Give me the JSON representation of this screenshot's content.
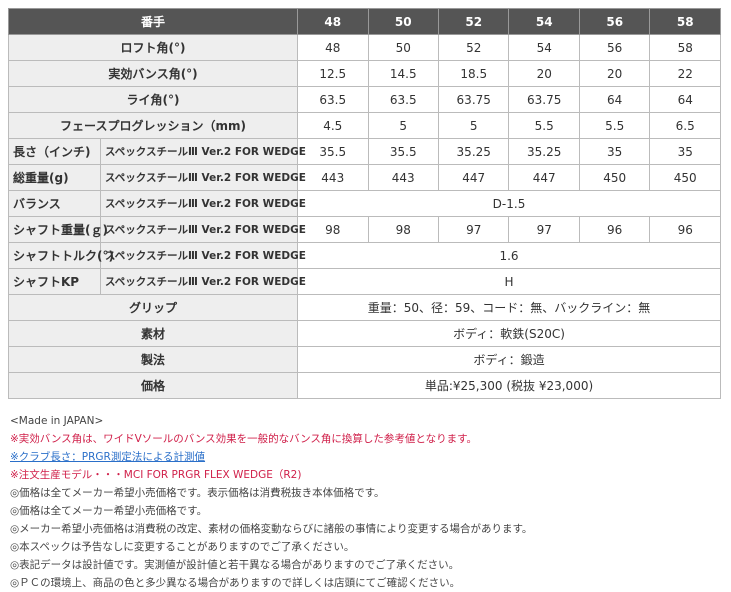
{
  "header": {
    "label": "番手",
    "models": [
      "48",
      "50",
      "52",
      "54",
      "56",
      "58"
    ]
  },
  "rows": {
    "loft": {
      "label": "ロフト角(°)",
      "values": [
        "48",
        "50",
        "52",
        "54",
        "56",
        "58"
      ]
    },
    "bounce": {
      "label": "実効バンス角(°)",
      "values": [
        "12.5",
        "14.5",
        "18.5",
        "20",
        "20",
        "22"
      ]
    },
    "lie": {
      "label": "ライ角(°)",
      "values": [
        "63.5",
        "63.5",
        "63.75",
        "63.75",
        "64",
        "64"
      ]
    },
    "fp": {
      "label": "フェースプログレッション（mm)",
      "values": [
        "4.5",
        "5",
        "5",
        "5.5",
        "5.5",
        "6.5"
      ]
    },
    "length": {
      "label": "長さ（インチ)",
      "shaft": "スペックスチールⅢ Ver.2 FOR WEDGE",
      "values": [
        "35.5",
        "35.5",
        "35.25",
        "35.25",
        "35",
        "35"
      ]
    },
    "weight": {
      "label": "総重量(g)",
      "shaft": "スペックスチールⅢ Ver.2 FOR WEDGE",
      "values": [
        "443",
        "443",
        "447",
        "447",
        "450",
        "450"
      ]
    },
    "balance": {
      "label": "バランス",
      "shaft": "スペックスチールⅢ Ver.2 FOR WEDGE",
      "value": "D-1.5"
    },
    "shaft_weight": {
      "label": "シャフト重量(ｇ)",
      "shaft": "スペックスチールⅢ Ver.2 FOR WEDGE",
      "values": [
        "98",
        "98",
        "97",
        "97",
        "96",
        "96"
      ]
    },
    "torque": {
      "label": "シャフトトルク(°)",
      "shaft": "スペックスチールⅢ Ver.2 FOR WEDGE",
      "value": "1.6"
    },
    "kp": {
      "label": "シャフトKP",
      "shaft": "スペックスチールⅢ Ver.2 FOR WEDGE",
      "value": "H"
    },
    "grip": {
      "label": "グリップ",
      "value": "重量：50、径：59、コード：無、バックライン：無"
    },
    "material": {
      "label": "素材",
      "value": "ボディ：軟鉄(S20C)"
    },
    "method": {
      "label": "製法",
      "value": "ボディ：鍛造"
    },
    "price": {
      "label": "価格",
      "value": "単品:¥25,300 (税抜 ¥23,000)"
    }
  },
  "notes": [
    "<Made in JAPAN>",
    "※実効バンス角は、ワイドVソールのバンス効果を一般的なバンス角に換算した参考値となります。",
    "※クラブ長さ：PRGR測定法による計測値",
    "※注文生産モデル・・・MCI FOR PRGR FLEX WEDGE（R2)",
    "◎価格は全てメーカー希望小売価格です。表示価格は消費税抜き本体価格です。",
    "◎価格は全てメーカー希望小売価格です。",
    "◎メーカー希望小売価格は消費税の改定、素材の価格変動ならびに諸般の事情により変更する場合があります。",
    "◎本スペックは予告なしに変更することがありますのでご了承ください。",
    "◎表記データは設計値です。実測値が設計値と若干異なる場合がありますのでご了承ください。",
    "◎ＰＣの環境上、商品の色と多少異なる場合がありますので詳しくは店頭にてご確認ください。"
  ],
  "colors": {
    "header_bg": "#555555",
    "label_bg": "#eeeeee",
    "note_red": "#d0204a",
    "link": "#2a6fc9"
  }
}
